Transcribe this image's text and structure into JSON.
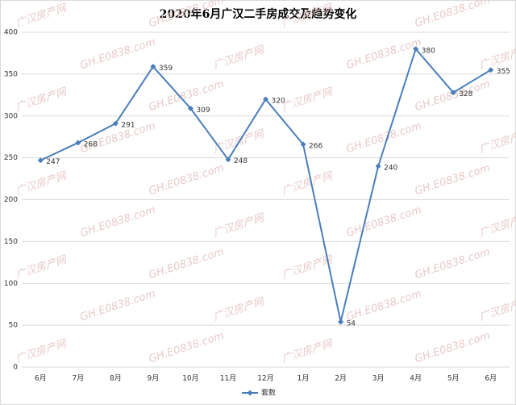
{
  "chart_data": {
    "type": "line",
    "title": "2020年6月广汉二手房成交及趋势变化",
    "categories": [
      "6月",
      "7月",
      "8月",
      "9月",
      "10月",
      "11月",
      "12月",
      "1月",
      "2月",
      "3月",
      "4月",
      "5月",
      "6月"
    ],
    "series": [
      {
        "name": "套数",
        "color": "#4a7ebb",
        "values": [
          247,
          268,
          291,
          359,
          309,
          248,
          320,
          266,
          54,
          240,
          380,
          328,
          355
        ]
      }
    ],
    "ylim": [
      0,
      400
    ],
    "yticks": [
      0,
      50,
      100,
      150,
      200,
      250,
      300,
      350,
      400
    ],
    "grid": true,
    "legend": "bottom",
    "watermark": [
      "广汉房产网",
      "GH.E0838.com"
    ]
  }
}
